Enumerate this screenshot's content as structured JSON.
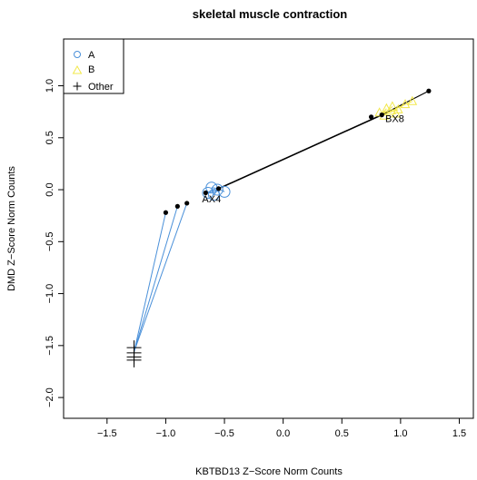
{
  "chart_data": {
    "type": "scatter",
    "title": "skeletal muscle contraction",
    "xlabel": "KBTBD13 Z−Score Norm Counts",
    "ylabel": "DMD Z−Score Norm Counts",
    "xlim": [
      -1.87,
      1.62
    ],
    "ylim": [
      -2.2,
      1.45
    ],
    "xticks": [
      -1.5,
      -1.0,
      -0.5,
      0.0,
      0.5,
      1.0,
      1.5
    ],
    "xtick_labels": [
      "−1.5",
      "−1.0",
      "−0.5",
      "0.0",
      "0.5",
      "1.0",
      "1.5"
    ],
    "yticks": [
      -2.0,
      -1.5,
      -1.0,
      -0.5,
      0.0,
      0.5,
      1.0
    ],
    "ytick_labels": [
      "−2.0",
      "−1.5",
      "−1.0",
      "−0.5",
      "0.0",
      "0.5",
      "1.0"
    ],
    "grid": false,
    "legend_position": "top-left",
    "series": [
      {
        "name": "A",
        "marker": "circle",
        "color": "#4a90d9",
        "points": [
          {
            "x": -0.61,
            "y": 0.02
          },
          {
            "x": -0.56,
            "y": 0.0
          },
          {
            "x": -0.64,
            "y": -0.03
          },
          {
            "x": -0.5,
            "y": -0.02
          },
          {
            "x": -0.59,
            "y": -0.05
          }
        ]
      },
      {
        "name": "B",
        "marker": "triangle",
        "color": "#f2e84a",
        "points": [
          {
            "x": 0.82,
            "y": 0.74
          },
          {
            "x": 0.88,
            "y": 0.78
          },
          {
            "x": 0.93,
            "y": 0.8
          },
          {
            "x": 0.98,
            "y": 0.77
          },
          {
            "x": 1.04,
            "y": 0.82
          },
          {
            "x": 1.1,
            "y": 0.85
          },
          {
            "x": 0.86,
            "y": 0.71
          },
          {
            "x": 0.96,
            "y": 0.73
          }
        ]
      },
      {
        "name": "Other",
        "marker": "plus",
        "color": "#000000",
        "points": [
          {
            "x": -1.27,
            "y": -1.52
          },
          {
            "x": -1.27,
            "y": -1.57
          },
          {
            "x": -1.27,
            "y": -1.61
          },
          {
            "x": -1.27,
            "y": -1.64
          }
        ]
      }
    ],
    "black_points": [
      {
        "x": -1.0,
        "y": -0.22
      },
      {
        "x": -0.9,
        "y": -0.16
      },
      {
        "x": -0.82,
        "y": -0.13
      },
      {
        "x": -0.66,
        "y": -0.03
      },
      {
        "x": -0.55,
        "y": 0.01
      },
      {
        "x": 0.75,
        "y": 0.7
      },
      {
        "x": 0.84,
        "y": 0.72
      },
      {
        "x": 1.24,
        "y": 0.95
      }
    ],
    "centroids": {
      "A": {
        "x": -0.55,
        "y": 0.01
      },
      "B": {
        "x": 0.84,
        "y": 0.72
      },
      "Other": {
        "x": -1.27,
        "y": -1.56
      }
    },
    "group_labels": [
      {
        "text": "AX4",
        "x": -0.61,
        "y": -0.12
      },
      {
        "text": "BX8",
        "x": 0.95,
        "y": 0.65
      }
    ],
    "colors": {
      "A_lines": "#4a90d9",
      "B_lines": "#f2e84a",
      "trajectory": "#000000"
    }
  }
}
